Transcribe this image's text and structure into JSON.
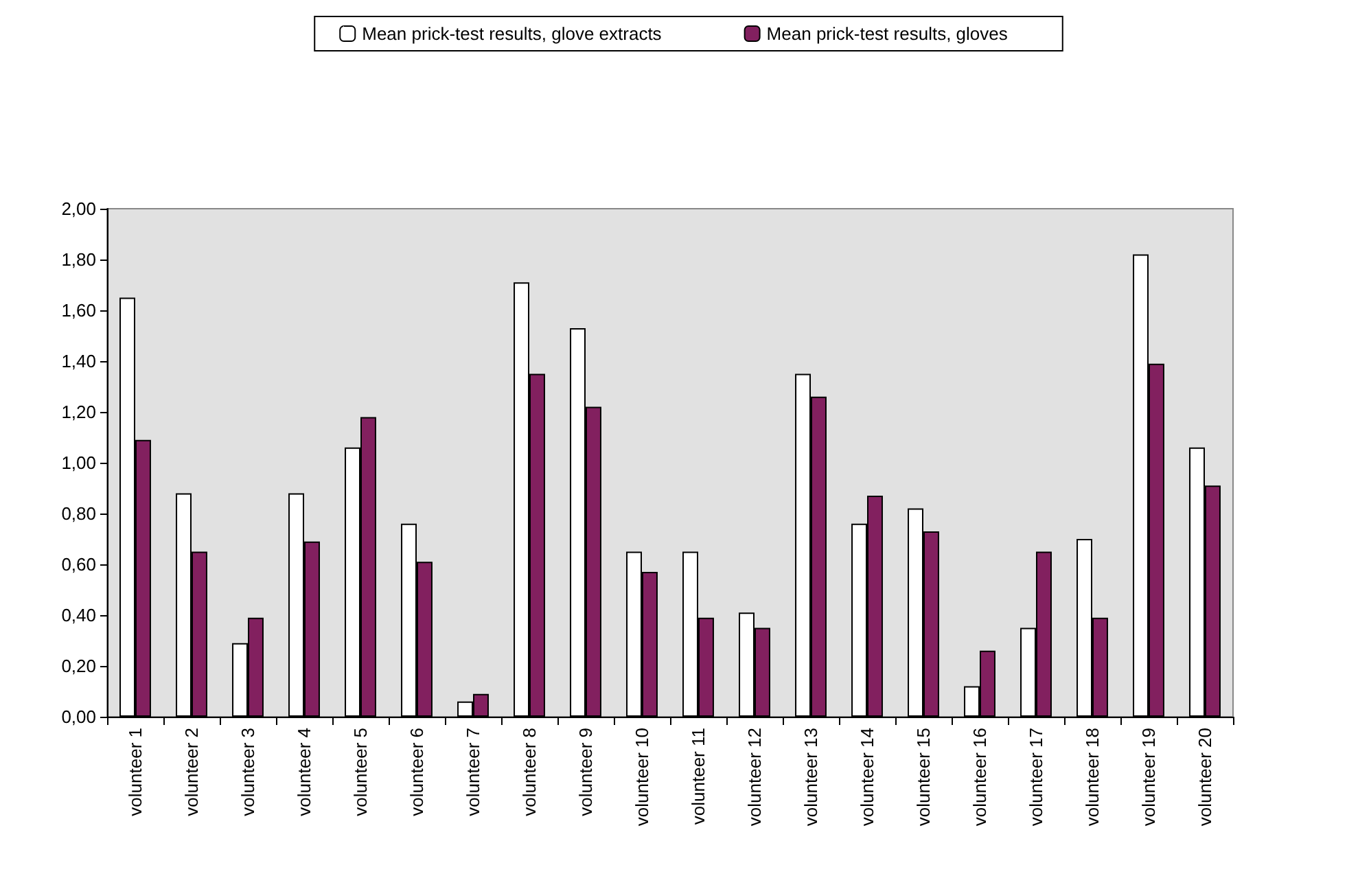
{
  "chart_data": {
    "type": "bar",
    "categories": [
      "volunteer 1",
      "volunteer 2",
      "volunteer 3",
      "volunteer 4",
      "volunteer 5",
      "volunteer 6",
      "volunteer 7",
      "volunteer 8",
      "volunteer 9",
      "volunteer 10",
      "volunteer 11",
      "volunteer 12",
      "volunteer 13",
      "volunteer 14",
      "volunteer 15",
      "volunteer 16",
      "volunteer 17",
      "volunteer 18",
      "volunteer 19",
      "volunteer 20"
    ],
    "series": [
      {
        "name": "Mean prick-test results, glove extracts",
        "color": "#ffffff",
        "values": [
          1.65,
          0.88,
          0.29,
          0.88,
          1.06,
          0.76,
          0.06,
          1.71,
          1.53,
          0.65,
          0.65,
          0.41,
          1.35,
          0.76,
          0.82,
          0.12,
          0.35,
          0.7,
          1.82,
          1.06
        ]
      },
      {
        "name": "Mean prick-test results, gloves",
        "color": "#82205f",
        "values": [
          1.09,
          0.65,
          0.39,
          0.69,
          1.18,
          0.61,
          0.09,
          1.35,
          1.22,
          0.57,
          0.39,
          0.35,
          1.26,
          0.87,
          0.73,
          0.26,
          0.65,
          0.39,
          1.39,
          0.91
        ]
      }
    ],
    "ylim": [
      0,
      2
    ],
    "yticks": [
      {
        "value": 0,
        "label": "0,00"
      },
      {
        "value": 0.2,
        "label": "0,20"
      },
      {
        "value": 0.4,
        "label": "0,40"
      },
      {
        "value": 0.6,
        "label": "0,60"
      },
      {
        "value": 0.8,
        "label": "0,80"
      },
      {
        "value": 1,
        "label": "1,00"
      },
      {
        "value": 1.2,
        "label": "1,20"
      },
      {
        "value": 1.4,
        "label": "1,40"
      },
      {
        "value": 1.6,
        "label": "1,60"
      },
      {
        "value": 1.8,
        "label": "1,80"
      },
      {
        "value": 2,
        "label": "2,00"
      }
    ],
    "grid": false,
    "legend": "top"
  }
}
